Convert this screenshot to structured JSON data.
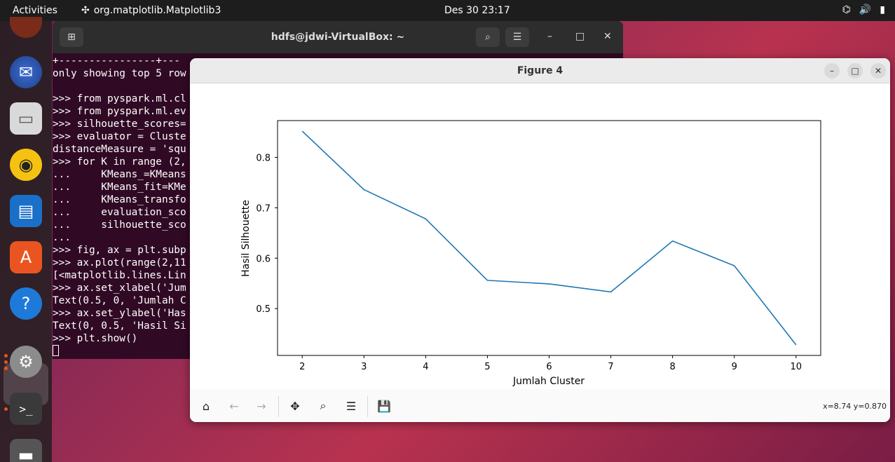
{
  "topbar": {
    "activities": "Activities",
    "app_name": "org.matplotlib.Matplotlib3",
    "clock": "Des 30  23:17"
  },
  "terminal": {
    "title": "hdfs@jdwi-VirtualBox: ~",
    "lines": [
      "+----------------+---",
      "only showing top 5 row",
      "",
      ">>> from pyspark.ml.cl",
      ">>> from pyspark.ml.ev",
      ">>> silhouette_scores=",
      ">>> evaluator = Cluste",
      "distanceMeasure = 'squ",
      ">>> for K in range (2,",
      "...     KMeans_=KMeans",
      "...     KMeans_fit=KMe",
      "...     KMeans_transfo",
      "...     evaluation_sco",
      "...     silhouette_sco",
      "...",
      ">>> fig, ax = plt.subp",
      ">>> ax.plot(range(2,11",
      "[<matplotlib.lines.Lin",
      ">>> ax.set_xlabel('Jum",
      "Text(0.5, 0, 'Jumlah C",
      ">>> ax.set_ylabel('Has",
      "Text(0, 0.5, 'Hasil Si",
      ">>> plt.show()"
    ]
  },
  "figure": {
    "title": "Figure 4",
    "coords": "x=8.74 y=0.870"
  },
  "chart_data": {
    "type": "line",
    "x": [
      2,
      3,
      4,
      5,
      6,
      7,
      8,
      9,
      10
    ],
    "series": [
      {
        "values": [
          0.852,
          0.736,
          0.678,
          0.556,
          0.549,
          0.533,
          0.634,
          0.585,
          0.428
        ],
        "color": "#1f77b4"
      }
    ],
    "xlabel": "Jumlah Cluster",
    "ylabel": "Hasil Silhouette",
    "xticks": [
      2,
      3,
      4,
      5,
      6,
      7,
      8,
      9,
      10
    ],
    "yticks": [
      0.5,
      0.6,
      0.7,
      0.8
    ],
    "ytick_labels": [
      "0.5",
      "0.6",
      "0.7",
      "0.8"
    ],
    "xlim": [
      1.6,
      10.4
    ],
    "ylim": [
      0.407,
      0.873
    ],
    "grid": false
  },
  "dock": {
    "icons": [
      "thunderbird-icon",
      "files-icon",
      "rhythmbox-icon",
      "writer-icon",
      "app-center-icon",
      "help-icon",
      "settings-icon",
      "terminal-icon",
      "disk-icon"
    ]
  }
}
